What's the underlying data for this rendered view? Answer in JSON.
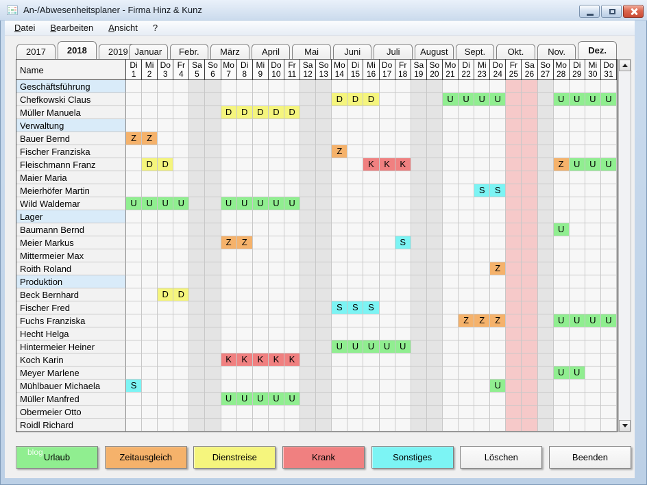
{
  "window": {
    "title": "An-/Abwesenheitsplaner - Firma Hinz & Kunz"
  },
  "menu": {
    "items": [
      "Datei",
      "Bearbeiten",
      "Ansicht",
      "?"
    ]
  },
  "year_tabs": {
    "items": [
      "2017",
      "2018",
      "2019"
    ],
    "selected": "2018"
  },
  "month_tabs": {
    "items": [
      "Januar",
      "Febr.",
      "März",
      "April",
      "Mai",
      "Juni",
      "Juli",
      "August",
      "Sept.",
      "Okt.",
      "Nov.",
      "Dez."
    ],
    "selected": "Dez."
  },
  "grid": {
    "name_header": "Name",
    "days": [
      [
        "Di",
        1
      ],
      [
        "Mi",
        2
      ],
      [
        "Do",
        3
      ],
      [
        "Fr",
        4
      ],
      [
        "Sa",
        5
      ],
      [
        "So",
        6
      ],
      [
        "Mo",
        7
      ],
      [
        "Di",
        8
      ],
      [
        "Mi",
        9
      ],
      [
        "Do",
        10
      ],
      [
        "Fr",
        11
      ],
      [
        "Sa",
        12
      ],
      [
        "So",
        13
      ],
      [
        "Mo",
        14
      ],
      [
        "Di",
        15
      ],
      [
        "Mi",
        16
      ],
      [
        "Do",
        17
      ],
      [
        "Fr",
        18
      ],
      [
        "Sa",
        19
      ],
      [
        "So",
        20
      ],
      [
        "Mo",
        21
      ],
      [
        "Di",
        22
      ],
      [
        "Mi",
        23
      ],
      [
        "Do",
        24
      ],
      [
        "Fr",
        25
      ],
      [
        "Sa",
        26
      ],
      [
        "So",
        27
      ],
      [
        "Mo",
        28
      ],
      [
        "Di",
        29
      ],
      [
        "Mi",
        30
      ],
      [
        "Do",
        31
      ]
    ],
    "weekend_days": [
      5,
      6,
      12,
      13,
      19,
      20,
      27
    ],
    "holiday_days": [
      25,
      26
    ],
    "rows": [
      {
        "name": "Geschäftsführung",
        "section": true
      },
      {
        "name": "Chefkowski Claus",
        "marks": {
          "14": "D",
          "15": "D",
          "16": "D",
          "21": "U",
          "22": "U",
          "23": "U",
          "24": "U",
          "28": "U",
          "29": "U",
          "30": "U",
          "31": "U"
        }
      },
      {
        "name": "Müller Manuela",
        "marks": {
          "7": "D",
          "8": "D",
          "9": "D",
          "10": "D",
          "11": "D"
        }
      },
      {
        "name": "Verwaltung",
        "section": true
      },
      {
        "name": "Bauer Bernd",
        "marks": {
          "1": "Z",
          "2": "Z"
        }
      },
      {
        "name": "Fischer Franziska",
        "marks": {
          "14": "Z"
        }
      },
      {
        "name": "Fleischmann Franz",
        "marks": {
          "2": "D",
          "3": "D",
          "16": "K",
          "17": "K",
          "18": "K",
          "28": "Z",
          "29": "U",
          "30": "U",
          "31": "U"
        }
      },
      {
        "name": "Maier Maria",
        "marks": {}
      },
      {
        "name": "Meierhöfer Martin",
        "marks": {
          "23": "S",
          "24": "S"
        }
      },
      {
        "name": "Wild Waldemar",
        "marks": {
          "1": "U",
          "2": "U",
          "3": "U",
          "4": "U",
          "7": "U",
          "8": "U",
          "9": "U",
          "10": "U",
          "11": "U"
        }
      },
      {
        "name": "Lager",
        "section": true
      },
      {
        "name": "Baumann Bernd",
        "marks": {
          "28": "U"
        }
      },
      {
        "name": "Meier Markus",
        "marks": {
          "7": "Z",
          "8": "Z",
          "18": "S"
        }
      },
      {
        "name": "Mittermeier Max",
        "marks": {}
      },
      {
        "name": "Roith Roland",
        "marks": {
          "24": "Z"
        }
      },
      {
        "name": "Produktion",
        "section": true
      },
      {
        "name": "Beck Bernhard",
        "marks": {
          "3": "D",
          "4": "D"
        }
      },
      {
        "name": "Fischer Fred",
        "marks": {
          "14": "S",
          "15": "S",
          "16": "S"
        }
      },
      {
        "name": "Fuchs Franziska",
        "marks": {
          "22": "Z",
          "23": "Z",
          "24": "Z",
          "28": "U",
          "29": "U",
          "30": "U",
          "31": "U"
        }
      },
      {
        "name": "Hecht Helga",
        "marks": {}
      },
      {
        "name": "Hintermeier Heiner",
        "marks": {
          "14": "U",
          "15": "U",
          "16": "U",
          "17": "U",
          "18": "U"
        }
      },
      {
        "name": "Koch Karin",
        "marks": {
          "7": "K",
          "8": "K",
          "9": "K",
          "10": "K",
          "11": "K"
        }
      },
      {
        "name": "Meyer Marlene",
        "marks": {
          "28": "U",
          "29": "U"
        }
      },
      {
        "name": "Mühlbauer Michaela",
        "marks": {
          "1": "S",
          "24": "U"
        }
      },
      {
        "name": "Müller Manfred",
        "marks": {
          "7": "U",
          "8": "U",
          "9": "U",
          "10": "U",
          "11": "U"
        }
      },
      {
        "name": "Obermeier Otto",
        "marks": {}
      },
      {
        "name": "Roidl Richard",
        "marks": {}
      }
    ]
  },
  "legend_buttons": [
    {
      "label": "Urlaub",
      "key": "U"
    },
    {
      "label": "Zeitausgleich",
      "key": "Z"
    },
    {
      "label": "Dienstreise",
      "key": "D"
    },
    {
      "label": "Krank",
      "key": "K"
    },
    {
      "label": "Sonstiges",
      "key": "S"
    }
  ],
  "action_buttons": [
    "Löschen",
    "Beenden"
  ],
  "watermark": "blog",
  "colors": {
    "marks": {
      "U": "#90EE90",
      "Z": "#F5B26B",
      "D": "#F5F57D",
      "K": "#F08080",
      "S": "#7CF4F4"
    },
    "weekend": "#E4E4E4",
    "holiday": "#F6C9C9",
    "section_row": "#D9EBF9",
    "frame": "#C2D6EA"
  }
}
